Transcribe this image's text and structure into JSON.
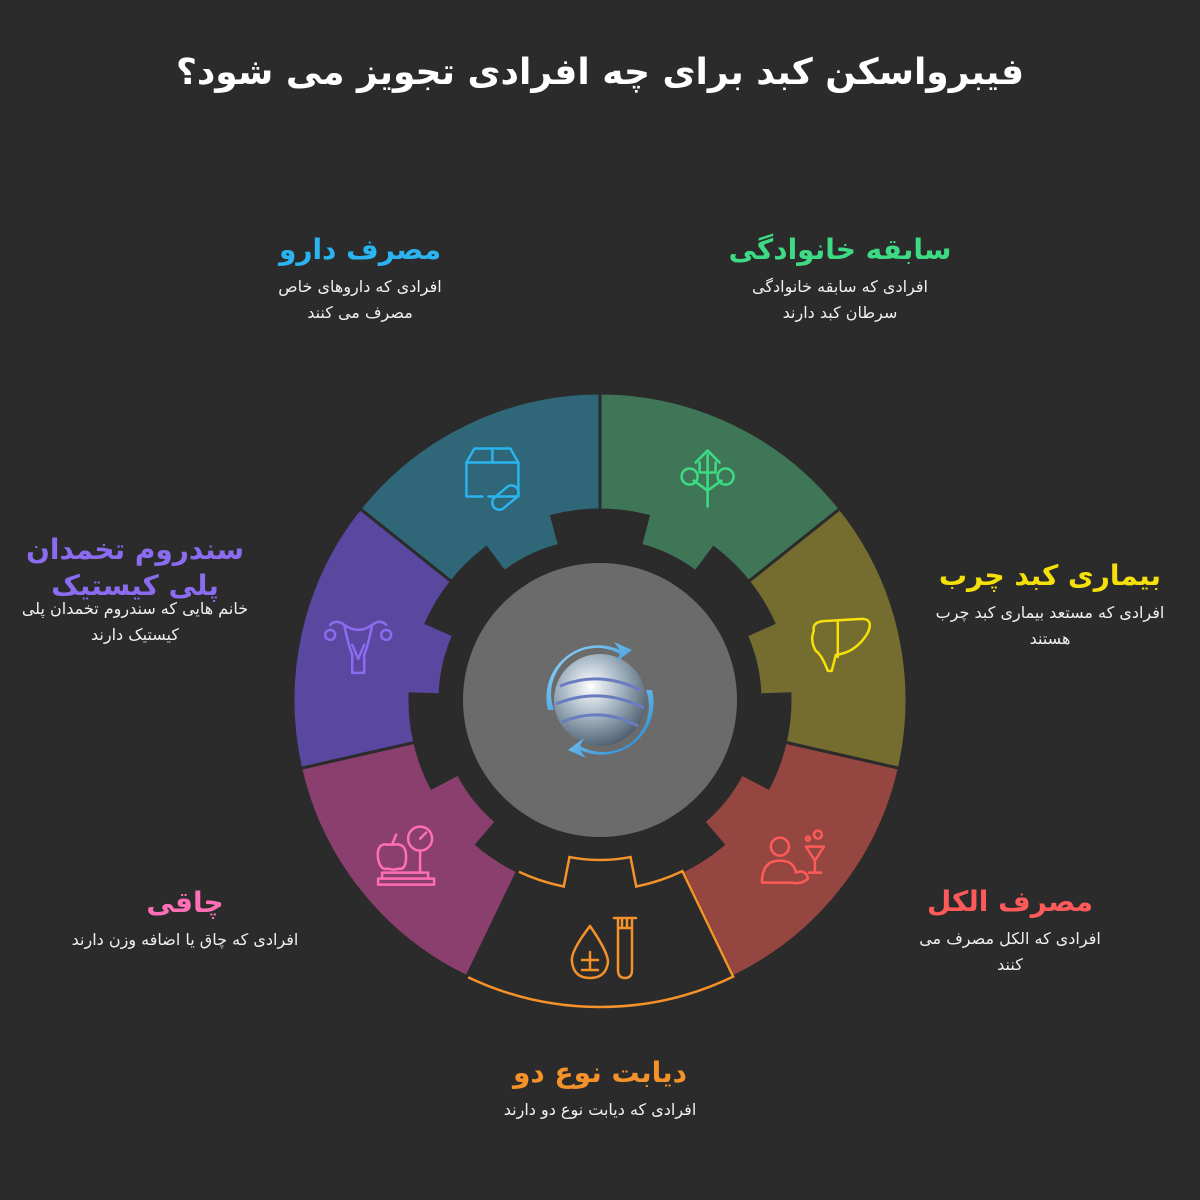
{
  "title": "فیبرواسکن کبد برای چه افرادی تجویز می شود؟",
  "segments": [
    {
      "heading": "سابقه خانوادگی",
      "desc": "افرادی که سابقه خانوادگی سرطان کبد دارند",
      "fill": "#3f7658",
      "accent": "#3ddc84",
      "icon": "family-tree-icon"
    },
    {
      "heading": "بیماری کبد چرب",
      "desc": "افرادی که مستعد بیماری کبد چرب هستند",
      "fill": "#756c30",
      "accent": "#f5e00a",
      "icon": "liver-icon"
    },
    {
      "heading": "مصرف الکل",
      "desc": "افرادی که الکل مصرف می کنند",
      "fill": "#964640",
      "accent": "#ff5a5a",
      "icon": "person-drink-icon"
    },
    {
      "heading": "دیابت نوع دو",
      "desc": "افرادی که دیابت نوع دو دارند",
      "fill": "none",
      "accent": "#f5922a",
      "icon": "blood-drop-test-tube-icon"
    },
    {
      "heading": "چاقی",
      "desc": "افرادی که چاق یا اضافه وزن دارند",
      "fill": "#8b3f6e",
      "accent": "#ff6fb5",
      "icon": "apple-scale-icon"
    },
    {
      "heading": "سندروم تخمدان پلی کیستیک",
      "desc": "خانم هایی که سندروم تخمدان پلی کیستیک دارند",
      "fill": "#5a47a0",
      "accent": "#8b6cf0",
      "icon": "uterus-icon"
    },
    {
      "heading": "مصرف دارو",
      "desc": "افرادی که داروهای خاص مصرف می کنند",
      "fill": "#2f6678",
      "accent": "#2ab4f0",
      "icon": "medicine-box-pill-icon"
    }
  ],
  "center": {
    "icon": "fibroscan-logo-icon",
    "fill": "#6b6b6b"
  }
}
